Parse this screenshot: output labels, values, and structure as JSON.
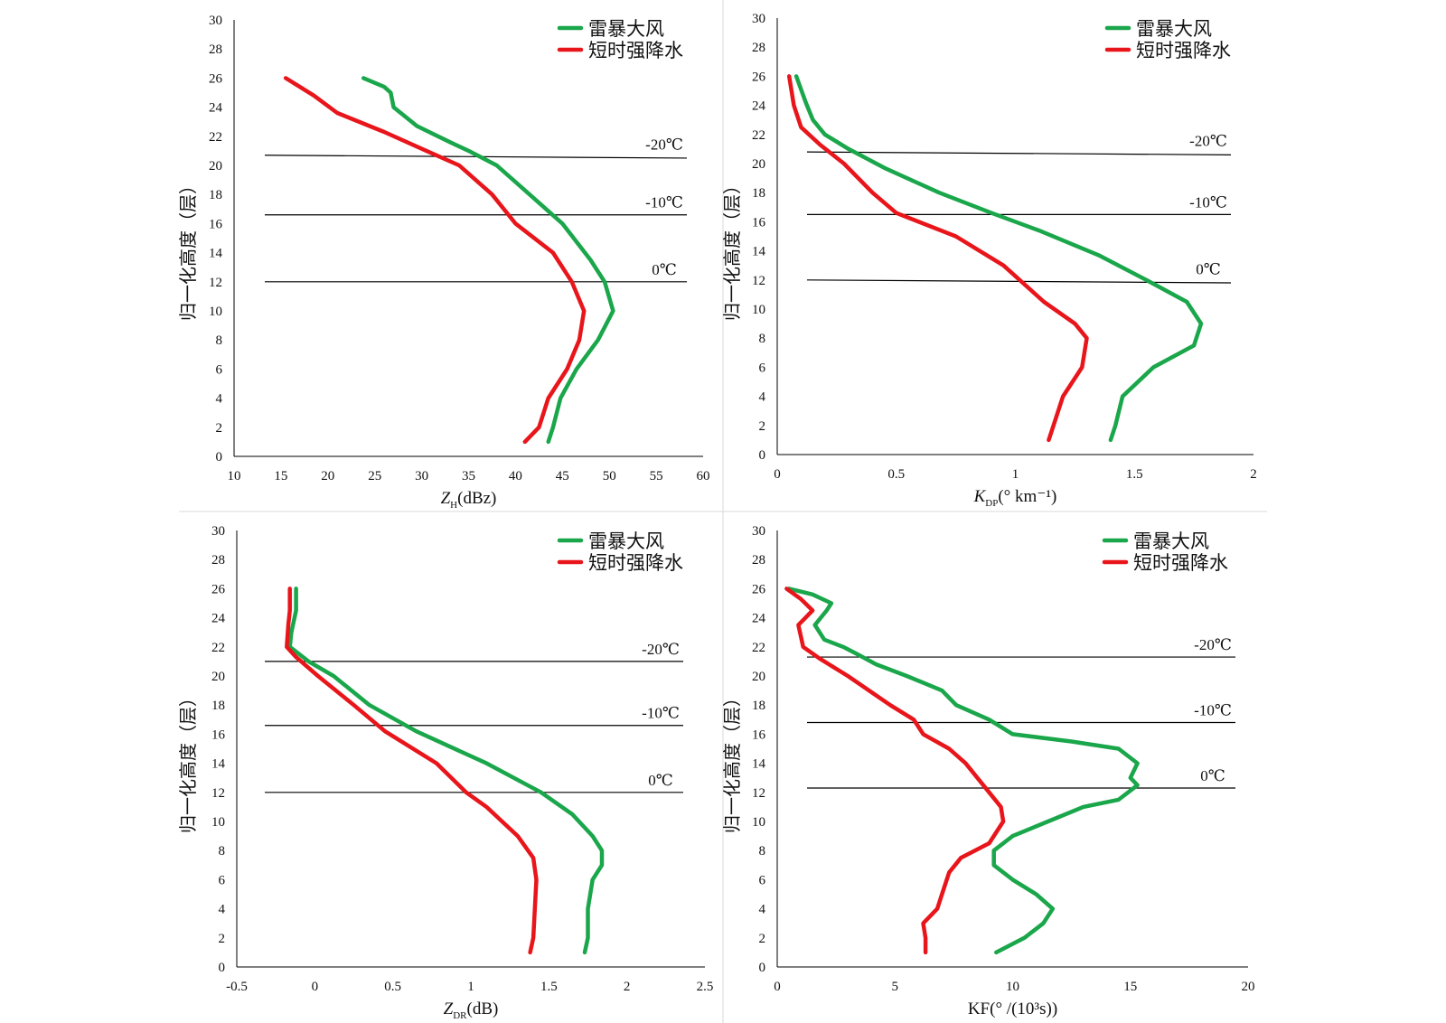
{
  "colors": {
    "gale": "#1aa64a",
    "rain": "#e8151b"
  },
  "chart_data": [
    {
      "type": "line",
      "xlabel_main": "Z",
      "xlabel_sub": "H",
      "xlabel_rest": "(dBz)",
      "ylabel": "归一化高度（层）",
      "xlim": [
        10,
        60
      ],
      "ylim": [
        0,
        30
      ],
      "xticks": [
        "10",
        "15",
        "20",
        "25",
        "30",
        "35",
        "40",
        "45",
        "50",
        "55",
        "60"
      ],
      "yticks": [
        "0",
        "2",
        "4",
        "6",
        "8",
        "10",
        "12",
        "14",
        "16",
        "18",
        "20",
        "22",
        "24",
        "26",
        "28",
        "30"
      ],
      "legend": [
        "雷暴大风",
        "短时强降水"
      ],
      "ref_lines": [
        {
          "label": "-20℃",
          "y1": 20.7,
          "y2": 20.5
        },
        {
          "label": "-10℃",
          "y1": 16.6,
          "y2": 16.6
        },
        {
          "label": "0℃",
          "y1": 12.0,
          "y2": 12.0
        }
      ],
      "series": [
        {
          "name": "雷暴大风",
          "color": "gale",
          "points": [
            [
              43.5,
              1
            ],
            [
              44,
              2
            ],
            [
              44.8,
              4
            ],
            [
              46.5,
              6
            ],
            [
              48.8,
              8
            ],
            [
              50.4,
              10
            ],
            [
              49.5,
              12
            ],
            [
              48,
              13.5
            ],
            [
              45,
              16
            ],
            [
              41.5,
              18
            ],
            [
              38,
              20
            ],
            [
              35,
              21
            ],
            [
              33,
              21.6
            ],
            [
              29.5,
              22.7
            ],
            [
              27,
              24
            ],
            [
              26.7,
              25
            ],
            [
              26,
              25.4
            ],
            [
              23.8,
              26
            ]
          ]
        },
        {
          "name": "短时强降水",
          "color": "rain",
          "points": [
            [
              41,
              1
            ],
            [
              42.5,
              2
            ],
            [
              43.5,
              4
            ],
            [
              45.5,
              6
            ],
            [
              46.8,
              8
            ],
            [
              47.3,
              10
            ],
            [
              46,
              12
            ],
            [
              44,
              14
            ],
            [
              40,
              16
            ],
            [
              37.5,
              18
            ],
            [
              34,
              20
            ],
            [
              30.5,
              21
            ],
            [
              26,
              22.3
            ],
            [
              21,
              23.6
            ],
            [
              18.5,
              24.8
            ],
            [
              17,
              25.4
            ],
            [
              15.5,
              26
            ]
          ]
        }
      ]
    },
    {
      "type": "line",
      "xlabel_main": "K",
      "xlabel_sub": "DP",
      "xlabel_rest": "(° km⁻¹)",
      "ylabel": "归一化高度（层）",
      "xlim": [
        0,
        2
      ],
      "ylim": [
        0,
        30
      ],
      "xticks": [
        "0",
        "0.5",
        "1",
        "1.5",
        "2"
      ],
      "yticks": [
        "0",
        "2",
        "4",
        "6",
        "8",
        "10",
        "12",
        "14",
        "16",
        "18",
        "20",
        "22",
        "24",
        "26",
        "28",
        "30"
      ],
      "legend": [
        "雷暴大风",
        "短时强降水"
      ],
      "ref_lines": [
        {
          "label": "-20℃",
          "y1": 20.8,
          "y2": 20.6
        },
        {
          "label": "-10℃",
          "y1": 16.5,
          "y2": 16.5
        },
        {
          "label": "0℃",
          "y1": 12.0,
          "y2": 11.8
        }
      ],
      "series": [
        {
          "name": "雷暴大风",
          "color": "gale",
          "points": [
            [
              1.4,
              1
            ],
            [
              1.42,
              2
            ],
            [
              1.45,
              4
            ],
            [
              1.58,
              6
            ],
            [
              1.75,
              7.5
            ],
            [
              1.78,
              9
            ],
            [
              1.72,
              10.5
            ],
            [
              1.55,
              12
            ],
            [
              1.35,
              13.7
            ],
            [
              1.1,
              15.4
            ],
            [
              0.9,
              16.6
            ],
            [
              0.68,
              18
            ],
            [
              0.45,
              19.7
            ],
            [
              0.3,
              21
            ],
            [
              0.2,
              22
            ],
            [
              0.15,
              23
            ],
            [
              0.12,
              24.2
            ],
            [
              0.08,
              26
            ]
          ]
        },
        {
          "name": "短时强降水",
          "color": "rain",
          "points": [
            [
              1.14,
              1
            ],
            [
              1.16,
              2
            ],
            [
              1.2,
              4
            ],
            [
              1.28,
              6
            ],
            [
              1.3,
              8
            ],
            [
              1.25,
              9
            ],
            [
              1.12,
              10.5
            ],
            [
              0.95,
              13
            ],
            [
              0.75,
              15
            ],
            [
              0.5,
              16.6
            ],
            [
              0.4,
              18
            ],
            [
              0.28,
              20
            ],
            [
              0.18,
              21.3
            ],
            [
              0.1,
              22.5
            ],
            [
              0.07,
              24
            ],
            [
              0.05,
              26
            ]
          ]
        }
      ]
    },
    {
      "type": "line",
      "xlabel_main": "Z",
      "xlabel_sub": "DR",
      "xlabel_rest": "(dB)",
      "ylabel": "归一化高度（层）",
      "xlim": [
        -0.5,
        2.5
      ],
      "ylim": [
        0,
        30
      ],
      "xticks": [
        "-0.5",
        "0",
        "0.5",
        "1",
        "1.5",
        "2",
        "2.5"
      ],
      "yticks": [
        "0",
        "2",
        "4",
        "6",
        "8",
        "10",
        "12",
        "14",
        "16",
        "18",
        "20",
        "22",
        "24",
        "26",
        "28",
        "30"
      ],
      "legend": [
        "雷暴大风",
        "短时强降水"
      ],
      "ref_lines": [
        {
          "label": "-20℃",
          "y1": 21.0,
          "y2": 21.0
        },
        {
          "label": "-10℃",
          "y1": 16.6,
          "y2": 16.6
        },
        {
          "label": "0℃",
          "y1": 12.0,
          "y2": 12.0
        }
      ],
      "series": [
        {
          "name": "雷暴大风",
          "color": "gale",
          "points": [
            [
              1.73,
              1
            ],
            [
              1.75,
              2
            ],
            [
              1.75,
              4
            ],
            [
              1.78,
              6
            ],
            [
              1.84,
              7
            ],
            [
              1.84,
              8
            ],
            [
              1.78,
              9
            ],
            [
              1.65,
              10.5
            ],
            [
              1.45,
              12
            ],
            [
              1.1,
              14
            ],
            [
              0.65,
              16.2
            ],
            [
              0.35,
              18
            ],
            [
              0.12,
              20
            ],
            [
              -0.04,
              21
            ],
            [
              -0.16,
              22
            ],
            [
              -0.15,
              23
            ],
            [
              -0.12,
              24.5
            ],
            [
              -0.12,
              26
            ]
          ]
        },
        {
          "name": "短时强降水",
          "color": "rain",
          "points": [
            [
              1.38,
              1
            ],
            [
              1.4,
              2
            ],
            [
              1.41,
              4
            ],
            [
              1.42,
              6
            ],
            [
              1.4,
              7.5
            ],
            [
              1.3,
              9
            ],
            [
              1.1,
              11
            ],
            [
              0.97,
              12
            ],
            [
              0.78,
              14
            ],
            [
              0.45,
              16.2
            ],
            [
              0.25,
              18
            ],
            [
              0.02,
              20
            ],
            [
              -0.12,
              21.3
            ],
            [
              -0.18,
              22
            ],
            [
              -0.17,
              23.5
            ],
            [
              -0.16,
              24.5
            ],
            [
              -0.16,
              26
            ]
          ]
        }
      ]
    },
    {
      "type": "line",
      "xlabel_main": "KF(° /(10³s))",
      "xlabel_sub": "",
      "xlabel_rest": "",
      "ylabel": "归一化高度（层）",
      "xlim": [
        0,
        20
      ],
      "ylim": [
        0,
        30
      ],
      "xticks": [
        "0",
        "5",
        "10",
        "15",
        "20"
      ],
      "yticks": [
        "0",
        "2",
        "4",
        "6",
        "8",
        "10",
        "12",
        "14",
        "16",
        "18",
        "20",
        "22",
        "24",
        "26",
        "28",
        "30"
      ],
      "legend": [
        "雷暴大风",
        "短时强降水"
      ],
      "ref_lines": [
        {
          "label": "-20℃",
          "y1": 21.3,
          "y2": 21.3
        },
        {
          "label": "-10℃",
          "y1": 16.8,
          "y2": 16.8
        },
        {
          "label": "0℃",
          "y1": 12.3,
          "y2": 12.3
        }
      ],
      "series": [
        {
          "name": "雷暴大风",
          "color": "gale",
          "points": [
            [
              9.3,
              1
            ],
            [
              10.5,
              2
            ],
            [
              11.3,
              3
            ],
            [
              11.7,
              4
            ],
            [
              11,
              5
            ],
            [
              10,
              6
            ],
            [
              9.2,
              7
            ],
            [
              9.2,
              8
            ],
            [
              10,
              9
            ],
            [
              11.5,
              10
            ],
            [
              13,
              11
            ],
            [
              14.5,
              11.5
            ],
            [
              15.3,
              12.5
            ],
            [
              15,
              13
            ],
            [
              15.3,
              14
            ],
            [
              14.5,
              15
            ],
            [
              12.5,
              15.5
            ],
            [
              10,
              16
            ],
            [
              9,
              17
            ],
            [
              7.6,
              18
            ],
            [
              7,
              19
            ],
            [
              5.5,
              20
            ],
            [
              4.2,
              20.8
            ],
            [
              3.4,
              21.5
            ],
            [
              2.8,
              22
            ],
            [
              2,
              22.5
            ],
            [
              1.6,
              23.5
            ],
            [
              2.1,
              24.5
            ],
            [
              2.3,
              25
            ],
            [
              1.5,
              25.6
            ],
            [
              0.5,
              26
            ]
          ]
        },
        {
          "name": "短时强降水",
          "color": "rain",
          "points": [
            [
              6.3,
              1
            ],
            [
              6.3,
              2
            ],
            [
              6.2,
              3
            ],
            [
              6.8,
              4
            ],
            [
              7,
              5
            ],
            [
              7.3,
              6.5
            ],
            [
              7.8,
              7.5
            ],
            [
              9,
              8.5
            ],
            [
              9.6,
              10
            ],
            [
              9.5,
              11
            ],
            [
              9,
              12
            ],
            [
              8.5,
              13
            ],
            [
              8,
              14
            ],
            [
              7.3,
              15
            ],
            [
              6.2,
              16
            ],
            [
              5.8,
              17
            ],
            [
              4.8,
              18
            ],
            [
              3.9,
              19
            ],
            [
              3,
              20
            ],
            [
              1.8,
              21.2
            ],
            [
              1.1,
              22
            ],
            [
              0.9,
              23.5
            ],
            [
              1.5,
              24.5
            ],
            [
              1,
              25.3
            ],
            [
              0.4,
              26
            ]
          ]
        }
      ]
    }
  ]
}
